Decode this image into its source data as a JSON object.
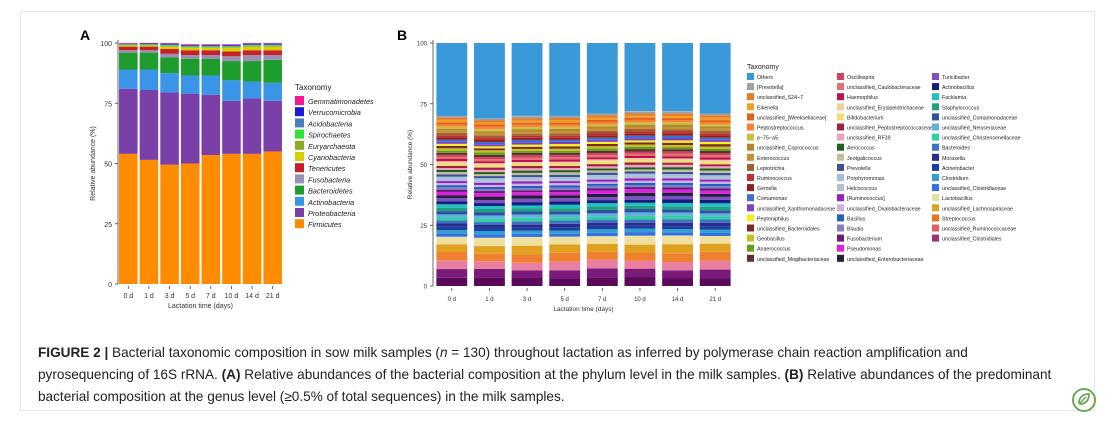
{
  "chart_data": [
    {
      "panel_label": "A",
      "type": "bar",
      "stacked": true,
      "categories": [
        "0 d",
        "1 d",
        "3 d",
        "5 d",
        "7 d",
        "10 d",
        "14 d",
        "21 d"
      ],
      "xlabel": "Lactation time (days)",
      "ylabel": "Relative abundance (%)",
      "ylim": [
        0,
        100
      ],
      "yticks": [
        0,
        25,
        50,
        75,
        100
      ],
      "legend_title": "Taxonomy",
      "legend_position": "right",
      "legend_order": [
        "Gemmatimonadetes",
        "Verrucomicrobia",
        "Acidobacteria",
        "Spirochaetes",
        "Euryarchaeota",
        "Cyanobacteria",
        "Tenericutes",
        "Fusobacteria",
        "Bacteroidetes",
        "Actinobacteria",
        "Proteobacteria",
        "Firmicutes"
      ],
      "series": [
        {
          "name": "Firmicutes",
          "color": "#ff8c00",
          "values": [
            54,
            51.5,
            49.5,
            50,
            53.5,
            54,
            54,
            55
          ]
        },
        {
          "name": "Proteobacteria",
          "color": "#7b3fa8",
          "values": [
            27,
            29,
            30,
            29,
            25,
            22,
            23,
            21
          ]
        },
        {
          "name": "Actinobacteria",
          "color": "#3a95e8",
          "values": [
            8,
            8.5,
            8,
            7.5,
            8,
            8.5,
            7,
            7.5
          ]
        },
        {
          "name": "Bacteroidetes",
          "color": "#1e9c2e",
          "values": [
            7,
            7,
            6.5,
            7,
            7,
            8,
            8.5,
            9.5
          ]
        },
        {
          "name": "Fusobacteria",
          "color": "#9a8fb5",
          "values": [
            1,
            1,
            1.5,
            1.5,
            1.5,
            2,
            2.5,
            2
          ]
        },
        {
          "name": "Tenericutes",
          "color": "#c8202a",
          "values": [
            1.5,
            1.5,
            2,
            2,
            2,
            2,
            2,
            2
          ]
        },
        {
          "name": "Cyanobacteria",
          "color": "#d6d000",
          "values": [
            0.5,
            0.5,
            1,
            1,
            1,
            1.5,
            1.5,
            1.5
          ]
        },
        {
          "name": "Euryarchaeota",
          "color": "#8ea82a",
          "values": [
            0.2,
            0.2,
            0.3,
            0.3,
            0.3,
            0.3,
            0.3,
            0.3
          ]
        },
        {
          "name": "Spirochaetes",
          "color": "#32e03a",
          "values": [
            0.2,
            0.2,
            0.3,
            0.3,
            0.3,
            0.3,
            0.3,
            0.3
          ]
        },
        {
          "name": "Acidobacteria",
          "color": "#4a7fbd",
          "values": [
            0.2,
            0.2,
            0.3,
            0.3,
            0.3,
            0.3,
            0.3,
            0.3
          ]
        },
        {
          "name": "Verrucomicrobia",
          "color": "#1a1ad6",
          "values": [
            0.1,
            0.2,
            0.3,
            0.3,
            0.3,
            0.3,
            0.3,
            0.3
          ]
        },
        {
          "name": "Gemmatimonadetes",
          "color": "#ff1493",
          "values": [
            0.3,
            0.2,
            0.3,
            0.3,
            0.3,
            0.3,
            0.3,
            0.3
          ]
        }
      ]
    },
    {
      "panel_label": "B",
      "type": "bar",
      "stacked": true,
      "categories": [
        "0 d",
        "1 d",
        "3 d",
        "5 d",
        "7 d",
        "10 d",
        "14 d",
        "21 d"
      ],
      "xlabel": "Lactation time (days)",
      "ylabel": "Relative abundance (%)",
      "ylim": [
        0,
        100
      ],
      "yticks": [
        0,
        25,
        50,
        75,
        100
      ],
      "legend_title": "Taxonomy",
      "legend_position": "right",
      "legend_columns": [
        [
          "Others",
          "[Prevotella]",
          "unclassified_S24−7",
          "Eikenella",
          "unclassified_[Weeksellaceae]",
          "Peptostreptococcus",
          "p−75−a5",
          "unclassified_Coprococcus",
          "Enterococcus",
          "Leptotrichia",
          "Ruminococcus",
          "Gemella",
          "Comamonas",
          "unclassified_Xanthomonadaceae",
          "Peptoniphilus",
          "unclassified_Bacteroidales",
          "Geobacillus",
          "Anaerococcus",
          "unclassified_Mogibacteriaceae"
        ],
        [
          "Oscillospira",
          "unclassified_Caulobacteraceae",
          "Haemophilus",
          "unclassified_Erysipelotrichaceae",
          "Bifidobacterium",
          "unclassified_Peptostreptococcaceae",
          "unclassified_RF39",
          "Aerococcus",
          "Jeotgalicoccus",
          "Prevotella",
          "Porphyromonas",
          "Helcococcus",
          "[Ruminococcus]",
          "unclassified_Oxalobacteraceae",
          "Bacillus",
          "Blautia",
          "Fusobacterium",
          "Pseudomonas",
          "unclassified_Enterobacteriaceae"
        ],
        [
          "Turicibacter",
          "Actinobacillus",
          "Facklamia",
          "Staphylococcus",
          "unclassified_Comamonadaceae",
          "unclassified_Neisseriaceae",
          "unclassified_Christensenellaceae",
          "Bacteroides",
          "Moraxella",
          "Acinetobacter",
          "Clostridium",
          "unclassified_Clostridiaceae",
          "Lactobacillus",
          "unclassified_Lachnospiraceae",
          "Streptococcus",
          "unclassified_Ruminococcaceae",
          "unclassified_Clostridiales"
        ]
      ],
      "legend_colors": [
        [
          "#3a9ad9",
          "#a0a0a0",
          "#e87a2a",
          "#f0a020",
          "#e06020",
          "#ff8030",
          "#c8c040",
          "#b08a2a",
          "#c89038",
          "#a06030",
          "#c03030",
          "#902020",
          "#3a70d0",
          "#8040c0",
          "#f0f020",
          "#7a2a2a",
          "#c8c020",
          "#60a020",
          "#603030"
        ],
        [
          "#d04060",
          "#e07070",
          "#c01050",
          "#f0d0a0",
          "#f0e070",
          "#a02040",
          "#f0a0c0",
          "#206020",
          "#c0c0a0",
          "#405090",
          "#a0c0e0",
          "#b0c0d0",
          "#9020c0",
          "#d0b0e0",
          "#2060c0",
          "#8080c0",
          "#6a1a7a",
          "#e020e0",
          "#20203a"
        ],
        [
          "#8050c0",
          "#102080",
          "#20c0c0",
          "#20a080",
          "#3050a0",
          "#60b0e0",
          "#30d0a0",
          "#4070c0",
          "#2a2a90",
          "#1a40a0",
          "#30a0d0",
          "#3070e0",
          "#e0e0a0",
          "#e0a020",
          "#f07020",
          "#e06060",
          "#a03070"
        ]
      ],
      "bar_series_values": {
        "Others": [
          30,
          31,
          30,
          30,
          29,
          28,
          28,
          29
        ],
        "stack_bottom_to_top_note": ""
      }
    }
  ],
  "caption": {
    "figure_label": "FIGURE 2 |",
    "text_1": " Bacterial taxonomic composition in sow milk samples (",
    "n_italic": "n",
    "text_2": " = 130) throughout lactation as inferred by polymerase chain reaction amplification and pyrosequencing of 16S rRNA. ",
    "a_label": "(A)",
    "text_3": " Relative abundances of the bacterial composition at the phylum level in the milk samples. ",
    "b_label": "(B)",
    "text_4": " Relative abundances of the predominant bacterial composition at the genus level (≥0.5% of total sequences) in the milk samples."
  },
  "badge_icon": "leaf-badge-icon",
  "badge_color": "#6aa84f"
}
